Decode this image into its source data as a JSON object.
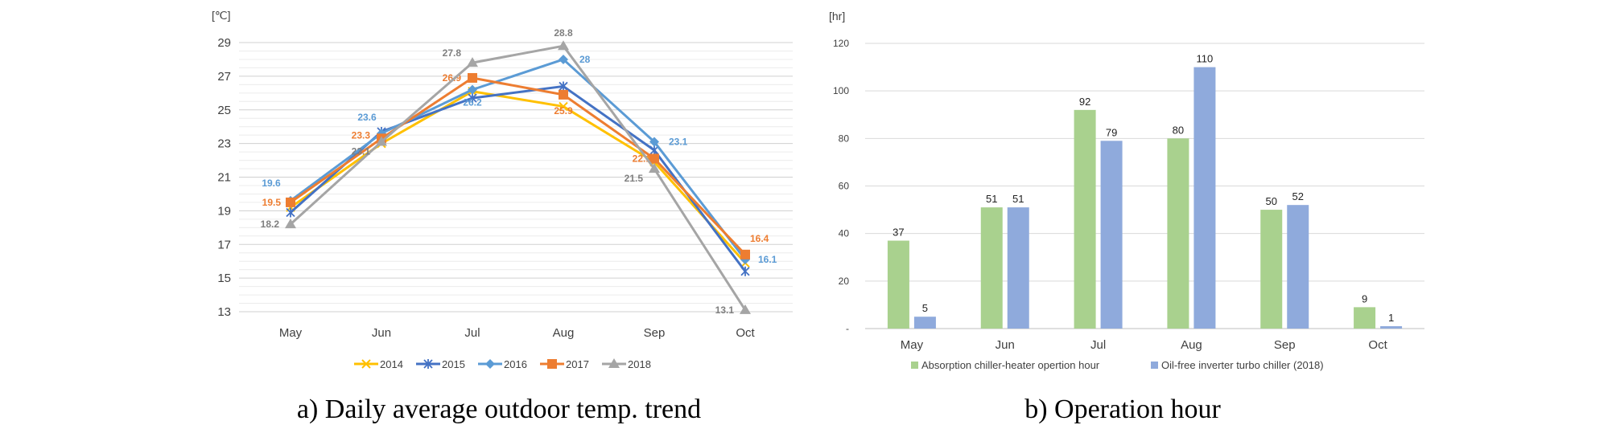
{
  "chart_data": [
    {
      "type": "line",
      "title": "a) Daily average outdoor temp. trend",
      "ylabel": "[℃]",
      "xlabel": "",
      "categories": [
        "May",
        "Jun",
        "Jul",
        "Aug",
        "Sep",
        "Oct"
      ],
      "ylim": [
        13,
        29
      ],
      "yticks": [
        13,
        15,
        17,
        19,
        21,
        23,
        25,
        27,
        29
      ],
      "grid": true,
      "legend": "bottom",
      "series": [
        {
          "name": "2014",
          "color": "#FFC000",
          "marker": "x",
          "values": [
            19.2,
            23.0,
            26.1,
            25.2,
            21.9,
            15.9
          ],
          "labels": [
            null,
            null,
            null,
            null,
            null,
            null
          ]
        },
        {
          "name": "2015",
          "color": "#4472C4",
          "marker": "star",
          "values": [
            18.9,
            23.7,
            25.7,
            26.4,
            22.6,
            15.4
          ],
          "labels": [
            null,
            null,
            null,
            null,
            null,
            null
          ]
        },
        {
          "name": "2016",
          "color": "#5B9BD5",
          "marker": "diamond",
          "values": [
            19.6,
            23.6,
            26.2,
            28.0,
            23.1,
            16.1
          ],
          "labels": [
            "19.6",
            "23.6",
            "26.2",
            "28",
            "23.1",
            "16.1"
          ]
        },
        {
          "name": "2017",
          "color": "#ED7D31",
          "marker": "square",
          "values": [
            19.5,
            23.3,
            26.9,
            25.9,
            22.1,
            16.4
          ],
          "labels": [
            "19.5",
            "23.3",
            "26.9",
            "25.9",
            "22.1",
            "16.4"
          ]
        },
        {
          "name": "2018",
          "color": "#A5A5A5",
          "marker": "triangle",
          "values": [
            18.2,
            23.1,
            27.8,
            28.8,
            21.5,
            13.1
          ],
          "labels": [
            "18.2",
            "23.1",
            "27.8",
            "28.8",
            "21.5",
            "13.1"
          ]
        }
      ]
    },
    {
      "type": "bar",
      "title": "b) Operation hour",
      "ylabel": "[hr]",
      "xlabel": "",
      "categories": [
        "May",
        "Jun",
        "Jul",
        "Aug",
        "Sep",
        "Oct"
      ],
      "ylim": [
        0,
        120
      ],
      "yticks": [
        "-",
        "20",
        "40",
        "60",
        "80",
        "100",
        "120"
      ],
      "grid": true,
      "legend": "bottom",
      "series": [
        {
          "name": "Absorption chiller-heater opertion hour",
          "color": "#A9D18E",
          "values": [
            37,
            51,
            92,
            80,
            50,
            9
          ]
        },
        {
          "name": "Oil-free inverter turbo chiller (2018)",
          "color": "#8FAADC",
          "values": [
            5,
            51,
            79,
            110,
            52,
            1
          ]
        }
      ]
    }
  ]
}
